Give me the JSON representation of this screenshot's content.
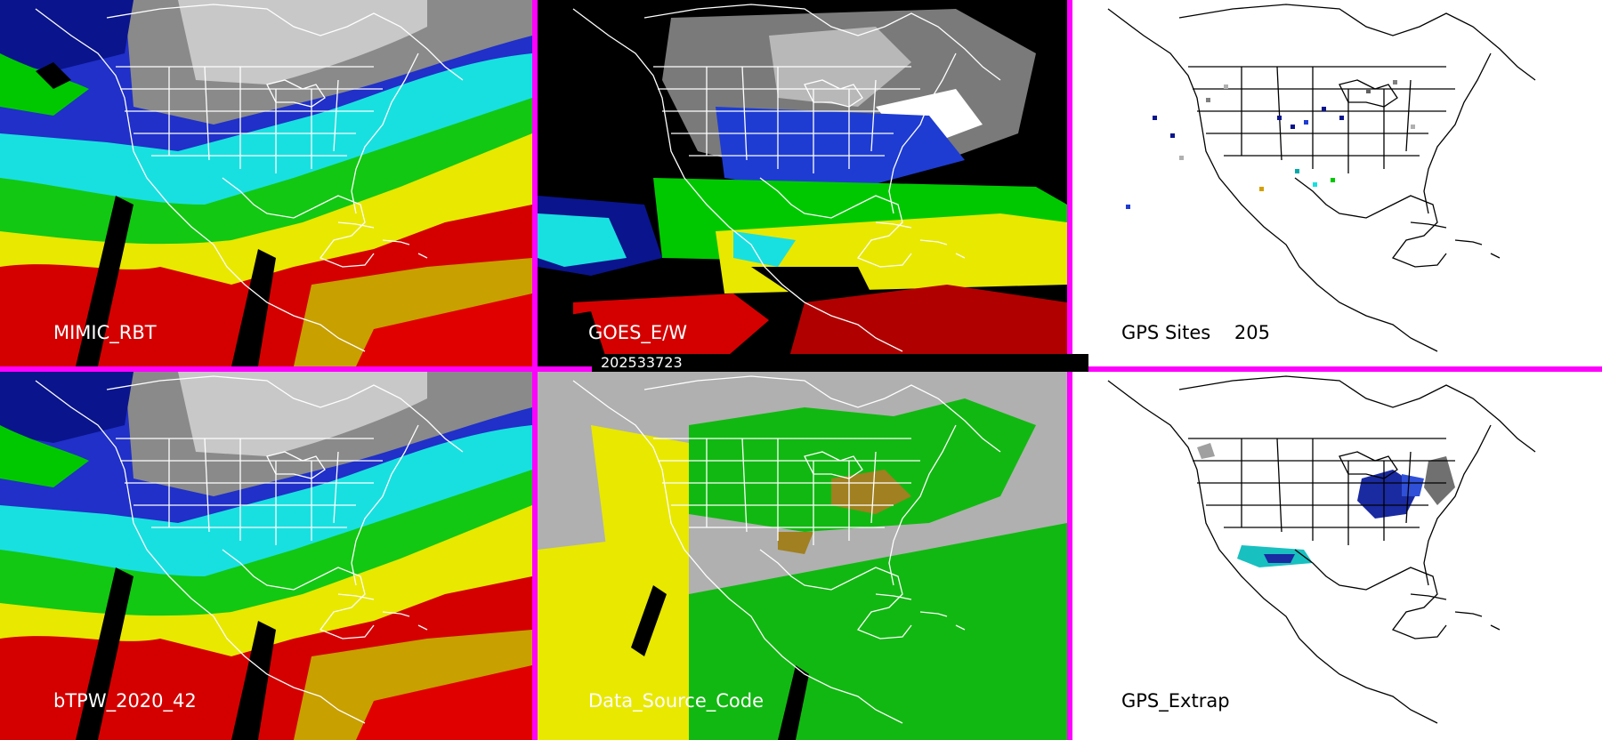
{
  "panels": {
    "top_left": {
      "label": "MIMIC_RBT"
    },
    "top_middle": {
      "label": "GOES_E/W"
    },
    "top_right": {
      "label": "GPS Sites    205"
    },
    "bottom_left": {
      "label": "bTPW_2020_42"
    },
    "bottom_middle": {
      "label": "Data_Source_Code"
    },
    "bottom_right": {
      "label": "GPS_Extrap"
    }
  },
  "timestamp": "202533723",
  "colors": {
    "divider": "#ff00ff",
    "tpw_scale": [
      "#404040",
      "#7a7a7a",
      "#b8b8b8",
      "#0a148c",
      "#1e3cd2",
      "#00aaaa",
      "#00ffff",
      "#00c800",
      "#a0ff00",
      "#ffff00",
      "#d4a000",
      "#e00000",
      "#7a0000"
    ],
    "source_codes": {
      "gray": "#b0b0b0",
      "yellow": "#e8e800",
      "green": "#12b812",
      "olive": "#a08020"
    }
  },
  "icons": {
    "map_outline": "map-outline-icon"
  }
}
